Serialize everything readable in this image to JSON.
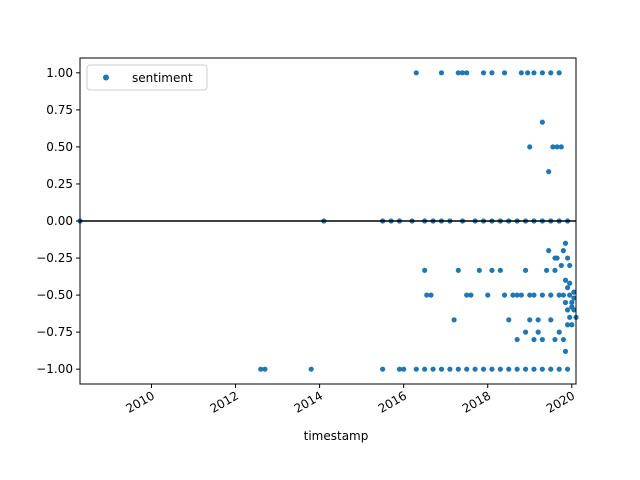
{
  "chart_data": {
    "type": "scatter",
    "xlabel": "timestamp",
    "ylabel": "",
    "xlim": [
      2008.3,
      2020.1
    ],
    "ylim": [
      -1.1,
      1.1
    ],
    "x_ticks": [
      2010,
      2012,
      2014,
      2016,
      2018,
      2020
    ],
    "x_tick_labels": [
      "2010",
      "2012",
      "2014",
      "2016",
      "2018",
      "2020"
    ],
    "y_ticks": [
      1.0,
      0.75,
      0.5,
      0.25,
      0.0,
      -0.25,
      -0.5,
      -0.75,
      -1.0
    ],
    "y_tick_labels": [
      "1.00",
      "0.75",
      "0.50",
      "0.25",
      "0.00",
      "−0.25",
      "−0.50",
      "−0.75",
      "−1.00"
    ],
    "grid": false,
    "legend_position": "top-left",
    "reference_line": {
      "y": 0.0,
      "color": "#000000"
    },
    "series": [
      {
        "name": "sentiment",
        "color": "#1f77b4",
        "points": [
          [
            2016.3,
            1.0
          ],
          [
            2016.9,
            1.0
          ],
          [
            2017.3,
            1.0
          ],
          [
            2017.4,
            1.0
          ],
          [
            2017.5,
            1.0
          ],
          [
            2017.9,
            1.0
          ],
          [
            2018.1,
            1.0
          ],
          [
            2018.4,
            1.0
          ],
          [
            2018.8,
            1.0
          ],
          [
            2018.95,
            1.0
          ],
          [
            2019.1,
            1.0
          ],
          [
            2019.3,
            1.0
          ],
          [
            2019.5,
            1.0
          ],
          [
            2019.7,
            1.0
          ],
          [
            2019.3,
            0.667
          ],
          [
            2019.0,
            0.5
          ],
          [
            2019.55,
            0.5
          ],
          [
            2019.65,
            0.5
          ],
          [
            2019.75,
            0.5
          ],
          [
            2019.45,
            0.333
          ],
          [
            2008.3,
            0.0
          ],
          [
            2014.1,
            0.0
          ],
          [
            2015.5,
            0.0
          ],
          [
            2015.7,
            0.0
          ],
          [
            2015.9,
            0.0
          ],
          [
            2016.2,
            0.0
          ],
          [
            2016.5,
            0.0
          ],
          [
            2016.7,
            0.0
          ],
          [
            2016.9,
            0.0
          ],
          [
            2017.1,
            0.0
          ],
          [
            2017.4,
            0.0
          ],
          [
            2017.7,
            0.0
          ],
          [
            2017.9,
            0.0
          ],
          [
            2018.1,
            0.0
          ],
          [
            2018.3,
            0.0
          ],
          [
            2018.5,
            0.0
          ],
          [
            2018.7,
            0.0
          ],
          [
            2018.9,
            0.0
          ],
          [
            2019.1,
            0.0
          ],
          [
            2019.3,
            0.0
          ],
          [
            2019.5,
            0.0
          ],
          [
            2019.7,
            0.0
          ],
          [
            2019.9,
            0.0
          ],
          [
            2012.6,
            -1.0
          ],
          [
            2012.7,
            -1.0
          ],
          [
            2013.8,
            -1.0
          ],
          [
            2015.5,
            -1.0
          ],
          [
            2015.9,
            -1.0
          ],
          [
            2016.0,
            -1.0
          ],
          [
            2016.3,
            -1.0
          ],
          [
            2016.5,
            -1.0
          ],
          [
            2016.7,
            -1.0
          ],
          [
            2016.9,
            -1.0
          ],
          [
            2017.1,
            -1.0
          ],
          [
            2017.3,
            -1.0
          ],
          [
            2017.5,
            -1.0
          ],
          [
            2017.7,
            -1.0
          ],
          [
            2017.9,
            -1.0
          ],
          [
            2018.1,
            -1.0
          ],
          [
            2018.3,
            -1.0
          ],
          [
            2018.5,
            -1.0
          ],
          [
            2018.7,
            -1.0
          ],
          [
            2018.9,
            -1.0
          ],
          [
            2019.1,
            -1.0
          ],
          [
            2019.3,
            -1.0
          ],
          [
            2019.5,
            -1.0
          ],
          [
            2019.7,
            -1.0
          ],
          [
            2019.9,
            -1.0
          ],
          [
            2016.5,
            -0.333
          ],
          [
            2016.55,
            -0.5
          ],
          [
            2016.65,
            -0.5
          ],
          [
            2017.2,
            -0.667
          ],
          [
            2017.3,
            -0.333
          ],
          [
            2017.5,
            -0.5
          ],
          [
            2017.6,
            -0.5
          ],
          [
            2017.8,
            -0.333
          ],
          [
            2018.0,
            -0.5
          ],
          [
            2018.1,
            -0.333
          ],
          [
            2018.3,
            -0.333
          ],
          [
            2018.4,
            -0.5
          ],
          [
            2018.5,
            -0.667
          ],
          [
            2018.6,
            -0.5
          ],
          [
            2018.7,
            -0.5
          ],
          [
            2018.8,
            -0.5
          ],
          [
            2018.9,
            -0.333
          ],
          [
            2019.0,
            -0.5
          ],
          [
            2019.1,
            -0.5
          ],
          [
            2019.2,
            -0.667
          ],
          [
            2019.3,
            -0.5
          ],
          [
            2019.4,
            -0.333
          ],
          [
            2019.5,
            -0.5
          ],
          [
            2019.6,
            -0.333
          ],
          [
            2019.7,
            -0.5
          ],
          [
            2019.8,
            -0.5
          ],
          [
            2018.7,
            -0.8
          ],
          [
            2018.9,
            -0.75
          ],
          [
            2019.0,
            -0.667
          ],
          [
            2019.1,
            -0.8
          ],
          [
            2019.2,
            -0.75
          ],
          [
            2019.3,
            -0.8
          ],
          [
            2019.5,
            -0.667
          ],
          [
            2019.6,
            -0.8
          ],
          [
            2019.7,
            -0.75
          ],
          [
            2019.8,
            -0.8
          ],
          [
            2019.45,
            -0.2
          ],
          [
            2019.6,
            -0.25
          ],
          [
            2019.65,
            -0.25
          ],
          [
            2019.85,
            -0.15
          ],
          [
            2019.9,
            -0.25
          ],
          [
            2019.95,
            -0.3
          ],
          [
            2019.75,
            -0.3
          ],
          [
            2019.8,
            -0.2
          ],
          [
            2019.85,
            -0.4
          ],
          [
            2019.9,
            -0.45
          ],
          [
            2019.95,
            -0.5
          ],
          [
            2020.0,
            -0.55
          ],
          [
            2020.05,
            -0.6
          ],
          [
            2019.95,
            -0.65
          ],
          [
            2020.0,
            -0.7
          ],
          [
            2019.9,
            -0.6
          ],
          [
            2019.85,
            -0.55
          ],
          [
            2019.95,
            -0.42
          ],
          [
            2020.05,
            -0.48
          ],
          [
            2020.0,
            -0.58
          ],
          [
            2019.9,
            -0.7
          ],
          [
            2019.85,
            -0.88
          ],
          [
            2020.05,
            -0.52
          ],
          [
            2020.1,
            -0.65
          ]
        ]
      }
    ]
  }
}
